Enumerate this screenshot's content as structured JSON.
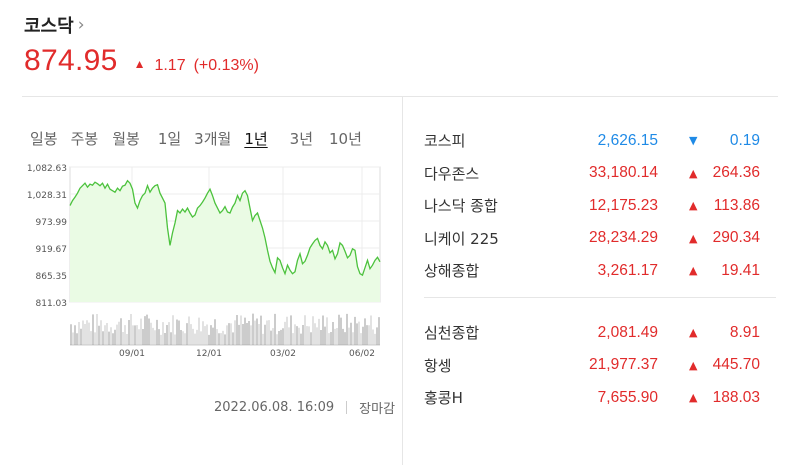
{
  "header": {
    "title": "코스닥",
    "chevron": "›",
    "price": "874.95",
    "change_dir": "▲",
    "change": "1.17",
    "change_pct": "(+0.13%)",
    "color_up": "#e12b2b"
  },
  "tabs": [
    "일봉",
    "주봉",
    "월봉",
    "1일",
    "3개월",
    "1년",
    "3년",
    "10년"
  ],
  "active_tab": "1년",
  "chart": {
    "y_ticks": [
      "1,082.63",
      "1,028.31",
      "973.99",
      "919.67",
      "865.35",
      "811.03"
    ],
    "x_ticks": [
      "09/01",
      "12/01",
      "03/02",
      "06/02"
    ]
  },
  "chart_data": {
    "type": "area",
    "ylim": [
      811.03,
      1082.63
    ],
    "y_ticks": [
      1082.63,
      1028.31,
      973.99,
      919.67,
      865.35,
      811.03
    ],
    "x_ticks": [
      "09/01",
      "12/01",
      "03/02",
      "06/02"
    ],
    "values": [
      1005,
      1015,
      1022,
      1030,
      1040,
      1045,
      1050,
      1042,
      1048,
      1046,
      1052,
      1049,
      1045,
      1050,
      1040,
      1048,
      1038,
      1035,
      1032,
      1040,
      1035,
      1044,
      1046,
      1055,
      1050,
      1038,
      1010,
      1000,
      1015,
      1025,
      1030,
      1045,
      1032,
      1040,
      1045,
      1047,
      1030,
      1020,
      1010,
      960,
      925,
      950,
      970,
      995,
      990,
      998,
      992,
      1000,
      990,
      982,
      986,
      1000,
      1005,
      1012,
      1020,
      1030,
      1038,
      1025,
      1010,
      1000,
      990,
      995,
      1003,
      992,
      990,
      1002,
      1010,
      1025,
      1015,
      1030,
      1035,
      1025,
      1000,
      975,
      985,
      990,
      975,
      960,
      940,
      915,
      893,
      880,
      870,
      900,
      895,
      880,
      868,
      885,
      875,
      868,
      872,
      895,
      908,
      888,
      893,
      905,
      920,
      928,
      935,
      939,
      925,
      918,
      932,
      925,
      910,
      915,
      898,
      908,
      930,
      925,
      913,
      900,
      905,
      918,
      915,
      882,
      868,
      865,
      880,
      895,
      878,
      885,
      895,
      901,
      892
    ],
    "volume_shown": true,
    "grid": true
  },
  "timestamp": "2022.06.08. 16:09",
  "market_status": "장마감",
  "indices_group1": [
    {
      "name": "코스피",
      "value": "2,626.15",
      "dir": "▼",
      "change": "0.19",
      "state": "down"
    },
    {
      "name": "다우존스",
      "value": "33,180.14",
      "dir": "▲",
      "change": "264.36",
      "state": "up"
    },
    {
      "name": "나스닥 종합",
      "value": "12,175.23",
      "dir": "▲",
      "change": "113.86",
      "state": "up"
    },
    {
      "name": "니케이 225",
      "value": "28,234.29",
      "dir": "▲",
      "change": "290.34",
      "state": "up"
    },
    {
      "name": "상해종합",
      "value": "3,261.17",
      "dir": "▲",
      "change": "19.41",
      "state": "up"
    }
  ],
  "indices_group2": [
    {
      "name": "심천종합",
      "value": "2,081.49",
      "dir": "▲",
      "change": "8.91",
      "state": "up"
    },
    {
      "name": "항셍",
      "value": "21,977.37",
      "dir": "▲",
      "change": "445.70",
      "state": "up"
    },
    {
      "name": "홍콩H",
      "value": "7,655.90",
      "dir": "▲",
      "change": "188.03",
      "state": "up"
    }
  ],
  "colors": {
    "up": "#e12b2b",
    "down": "#1f8ae6",
    "line": "#4cc23d",
    "fill": "#eafbe4"
  }
}
